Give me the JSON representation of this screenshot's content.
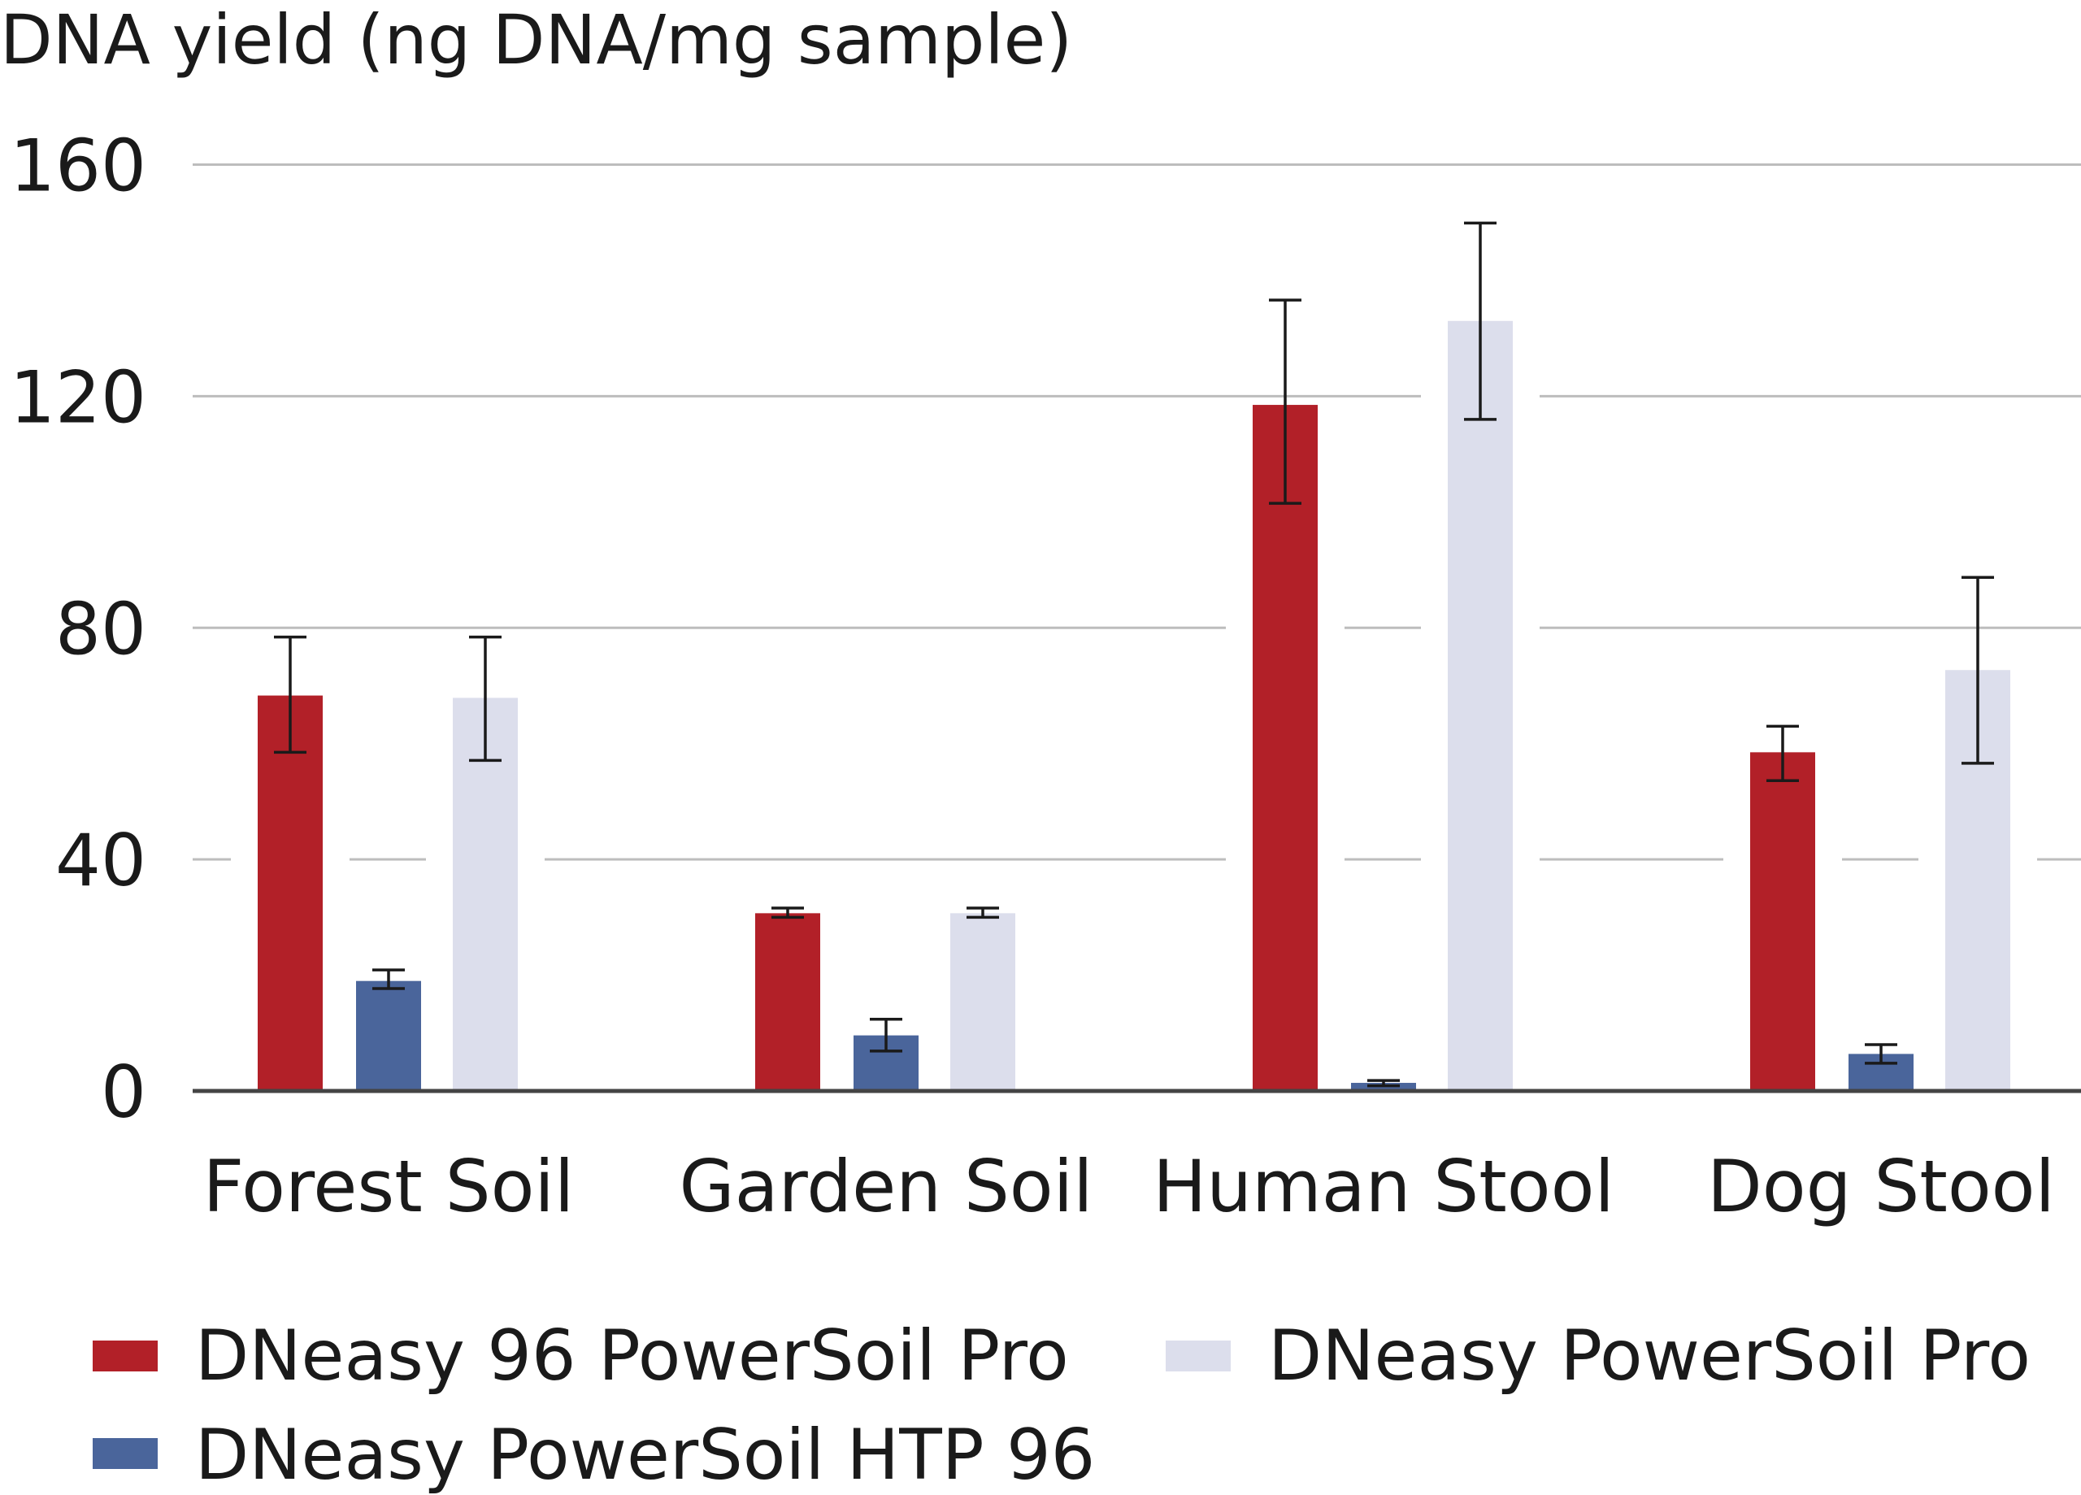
{
  "chart_data": {
    "type": "bar",
    "title": "",
    "ylabel": "DNA yield (ng DNA/mg sample)",
    "xlabel": "",
    "ylim": [
      0,
      160
    ],
    "yticks": [
      0,
      40,
      80,
      120,
      160
    ],
    "grid": true,
    "legend_position": "bottom",
    "categories": [
      "Forest Soil",
      "Garden Soil",
      "Human Stool",
      "Dog Stool"
    ],
    "series": [
      {
        "name": "DNeasy 96 PowerSoil Pro",
        "color": "#b22028",
        "values": [
          68.3,
          30.7,
          118.5,
          58.5
        ],
        "error_low": [
          58.5,
          30.0,
          101.5,
          53.6
        ],
        "error_high": [
          78.4,
          31.6,
          136.6,
          63.0
        ]
      },
      {
        "name": "DNeasy PowerSoil HTP 96",
        "color": "#4a659b",
        "values": [
          19.0,
          9.6,
          1.4,
          6.4
        ],
        "error_low": [
          17.7,
          6.9,
          0.9,
          4.8
        ],
        "error_high": [
          20.9,
          12.4,
          1.8,
          8.0
        ]
      },
      {
        "name": "DNeasy PowerSoil Pro",
        "color": "#dcdeec",
        "values": [
          67.9,
          30.7,
          133.0,
          72.7
        ],
        "error_low": [
          57.1,
          30.0,
          116.0,
          56.6
        ],
        "error_high": [
          78.4,
          31.6,
          149.9,
          88.7
        ]
      }
    ]
  }
}
